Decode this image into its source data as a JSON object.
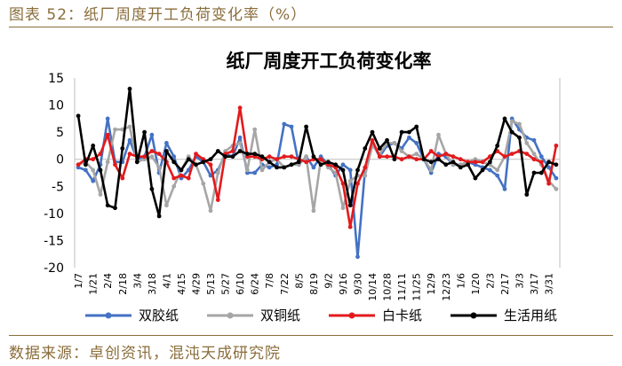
{
  "figure": {
    "caption": "图表 52：纸厂周度开工负荷变化率（%）",
    "source": "数据来源：卓创资讯，混沌天成研究院"
  },
  "chart_data": {
    "type": "line",
    "title": "纸厂周度开工负荷变化率",
    "xlabel": "",
    "ylabel": "",
    "ylim": [
      -20,
      15
    ],
    "yticks": [
      15,
      10,
      5,
      0,
      -5,
      -10,
      -15,
      -20
    ],
    "grid": false,
    "legend_position": "bottom",
    "x": [
      "1/7",
      "1/14",
      "1/21",
      "1/28",
      "2/4",
      "2/11",
      "2/18",
      "2/25",
      "3/4",
      "3/11",
      "3/18",
      "3/25",
      "4/1",
      "4/8",
      "4/15",
      "4/22",
      "4/29",
      "5/6",
      "5/13",
      "5/20",
      "5/27",
      "6/3",
      "6/10",
      "6/17",
      "6/24",
      "7/1",
      "7/8",
      "7/15",
      "7/22",
      "7/29",
      "8/5",
      "8/12",
      "8/19",
      "8/26",
      "9/2",
      "9/9",
      "9/16",
      "9/23",
      "9/30",
      "10/7",
      "10/14",
      "10/21",
      "10/28",
      "11/4",
      "11/11",
      "11/18",
      "11/25",
      "12/2",
      "12/9",
      "12/16",
      "12/23",
      "12/30",
      "1/6",
      "1/13",
      "1/20",
      "1/27",
      "2/3",
      "2/10",
      "2/17",
      "2/24",
      "3/3",
      "3/10",
      "3/17",
      "3/24",
      "3/31",
      "4/7"
    ],
    "xtick_labels": [
      "1/7",
      "1/21",
      "2/4",
      "2/18",
      "3/4",
      "3/18",
      "4/1",
      "4/15",
      "4/29",
      "5/13",
      "5/27",
      "6/10",
      "6/24",
      "7/8",
      "7/22",
      "8/5",
      "8/19",
      "9/2",
      "9/16",
      "9/30",
      "10/14",
      "10/28",
      "11/11",
      "11/25",
      "12/9",
      "12/23",
      "1/6",
      "1/20",
      "2/3",
      "2/17",
      "3/3",
      "3/17",
      "3/31"
    ],
    "series": [
      {
        "name": "双胶纸",
        "color": "#4472c4",
        "values": [
          -1.5,
          -2,
          -4,
          -1,
          7.5,
          -0.5,
          -0.5,
          3.5,
          0,
          0.5,
          4.5,
          -2.5,
          3,
          0.5,
          -3.5,
          -2,
          0.5,
          -0.5,
          -3,
          -2,
          1,
          0.5,
          4,
          -2.5,
          -2.5,
          -1,
          -1.5,
          -1,
          6.5,
          6,
          -1,
          0.5,
          -1.5,
          0.5,
          -1,
          -3,
          -1,
          -2,
          -18,
          -2,
          3,
          0.5,
          2.5,
          3,
          2,
          4,
          3,
          0,
          -2.5,
          1,
          0.5,
          -1,
          -1,
          -0.5,
          -1,
          -1.5,
          -2,
          -3,
          -5.5,
          7.5,
          5.5,
          4,
          3.5,
          0.5,
          -1.5,
          -3.5
        ]
      },
      {
        "name": "双铜纸",
        "color": "#a6a6a6",
        "values": [
          -1,
          -0.5,
          -2,
          -6.5,
          -0.5,
          5.5,
          5.5,
          6,
          -0.5,
          0,
          0.5,
          -1.5,
          -8.5,
          -5,
          -2,
          0.5,
          -1,
          -4.5,
          -9.5,
          -2.5,
          1.5,
          2.5,
          3,
          -2,
          5.5,
          -2,
          -0.5,
          0,
          -1.5,
          -1,
          -1,
          0.5,
          -9.5,
          0,
          -1.5,
          -2.5,
          -9,
          -4,
          -3,
          -3,
          2.5,
          1,
          3,
          3,
          1.5,
          0.5,
          1,
          0,
          -2,
          4.5,
          1,
          -1,
          -1,
          -0.5,
          0,
          -0.5,
          -1,
          -2,
          0.5,
          7,
          6.5,
          3,
          1,
          -1,
          -4,
          -5.5
        ]
      },
      {
        "name": "白卡纸",
        "color": "#e31a1c",
        "values": [
          -1,
          0,
          0,
          1,
          4.5,
          -1,
          -3.5,
          1,
          0.5,
          0.5,
          1.5,
          1,
          -0.5,
          -3.5,
          -3,
          -3.5,
          1,
          0,
          -1,
          -7.5,
          1,
          1.5,
          9.5,
          0.5,
          0.5,
          0,
          0.5,
          0,
          0.5,
          0.5,
          0,
          -0.5,
          0,
          0,
          -1,
          -1.5,
          -4.5,
          -12.5,
          -4.5,
          -1.5,
          3.5,
          0.5,
          0.5,
          0.5,
          0,
          0.5,
          0,
          0,
          1.5,
          0.5,
          1,
          0.5,
          0,
          -0.5,
          -0.5,
          -0.5,
          0.5,
          1.5,
          0.5,
          1,
          1.5,
          1,
          0,
          -0.5,
          -4.5,
          2.5
        ]
      },
      {
        "name": "生活用纸",
        "color": "#000000",
        "values": [
          8,
          -1,
          2.5,
          -2,
          -8.5,
          -9,
          2,
          13,
          -0.5,
          5,
          -5.5,
          -10.5,
          1.5,
          -0.5,
          -2,
          0,
          -1,
          -0.5,
          0,
          1.5,
          0.5,
          0.5,
          1.5,
          1,
          1,
          0.5,
          -0.5,
          -1.5,
          -1.5,
          -1,
          -0.5,
          6,
          0.5,
          -1,
          -0.5,
          -1,
          -2,
          -8.5,
          -2,
          2,
          5,
          2,
          3.5,
          0,
          5,
          5,
          6,
          0,
          -0.5,
          0,
          -1,
          -0.5,
          -1.5,
          -1,
          -3.5,
          -2,
          -0.5,
          2.5,
          7.5,
          5,
          4,
          -6.5,
          -2.5,
          -2.5,
          -0.5,
          -1
        ]
      }
    ]
  }
}
